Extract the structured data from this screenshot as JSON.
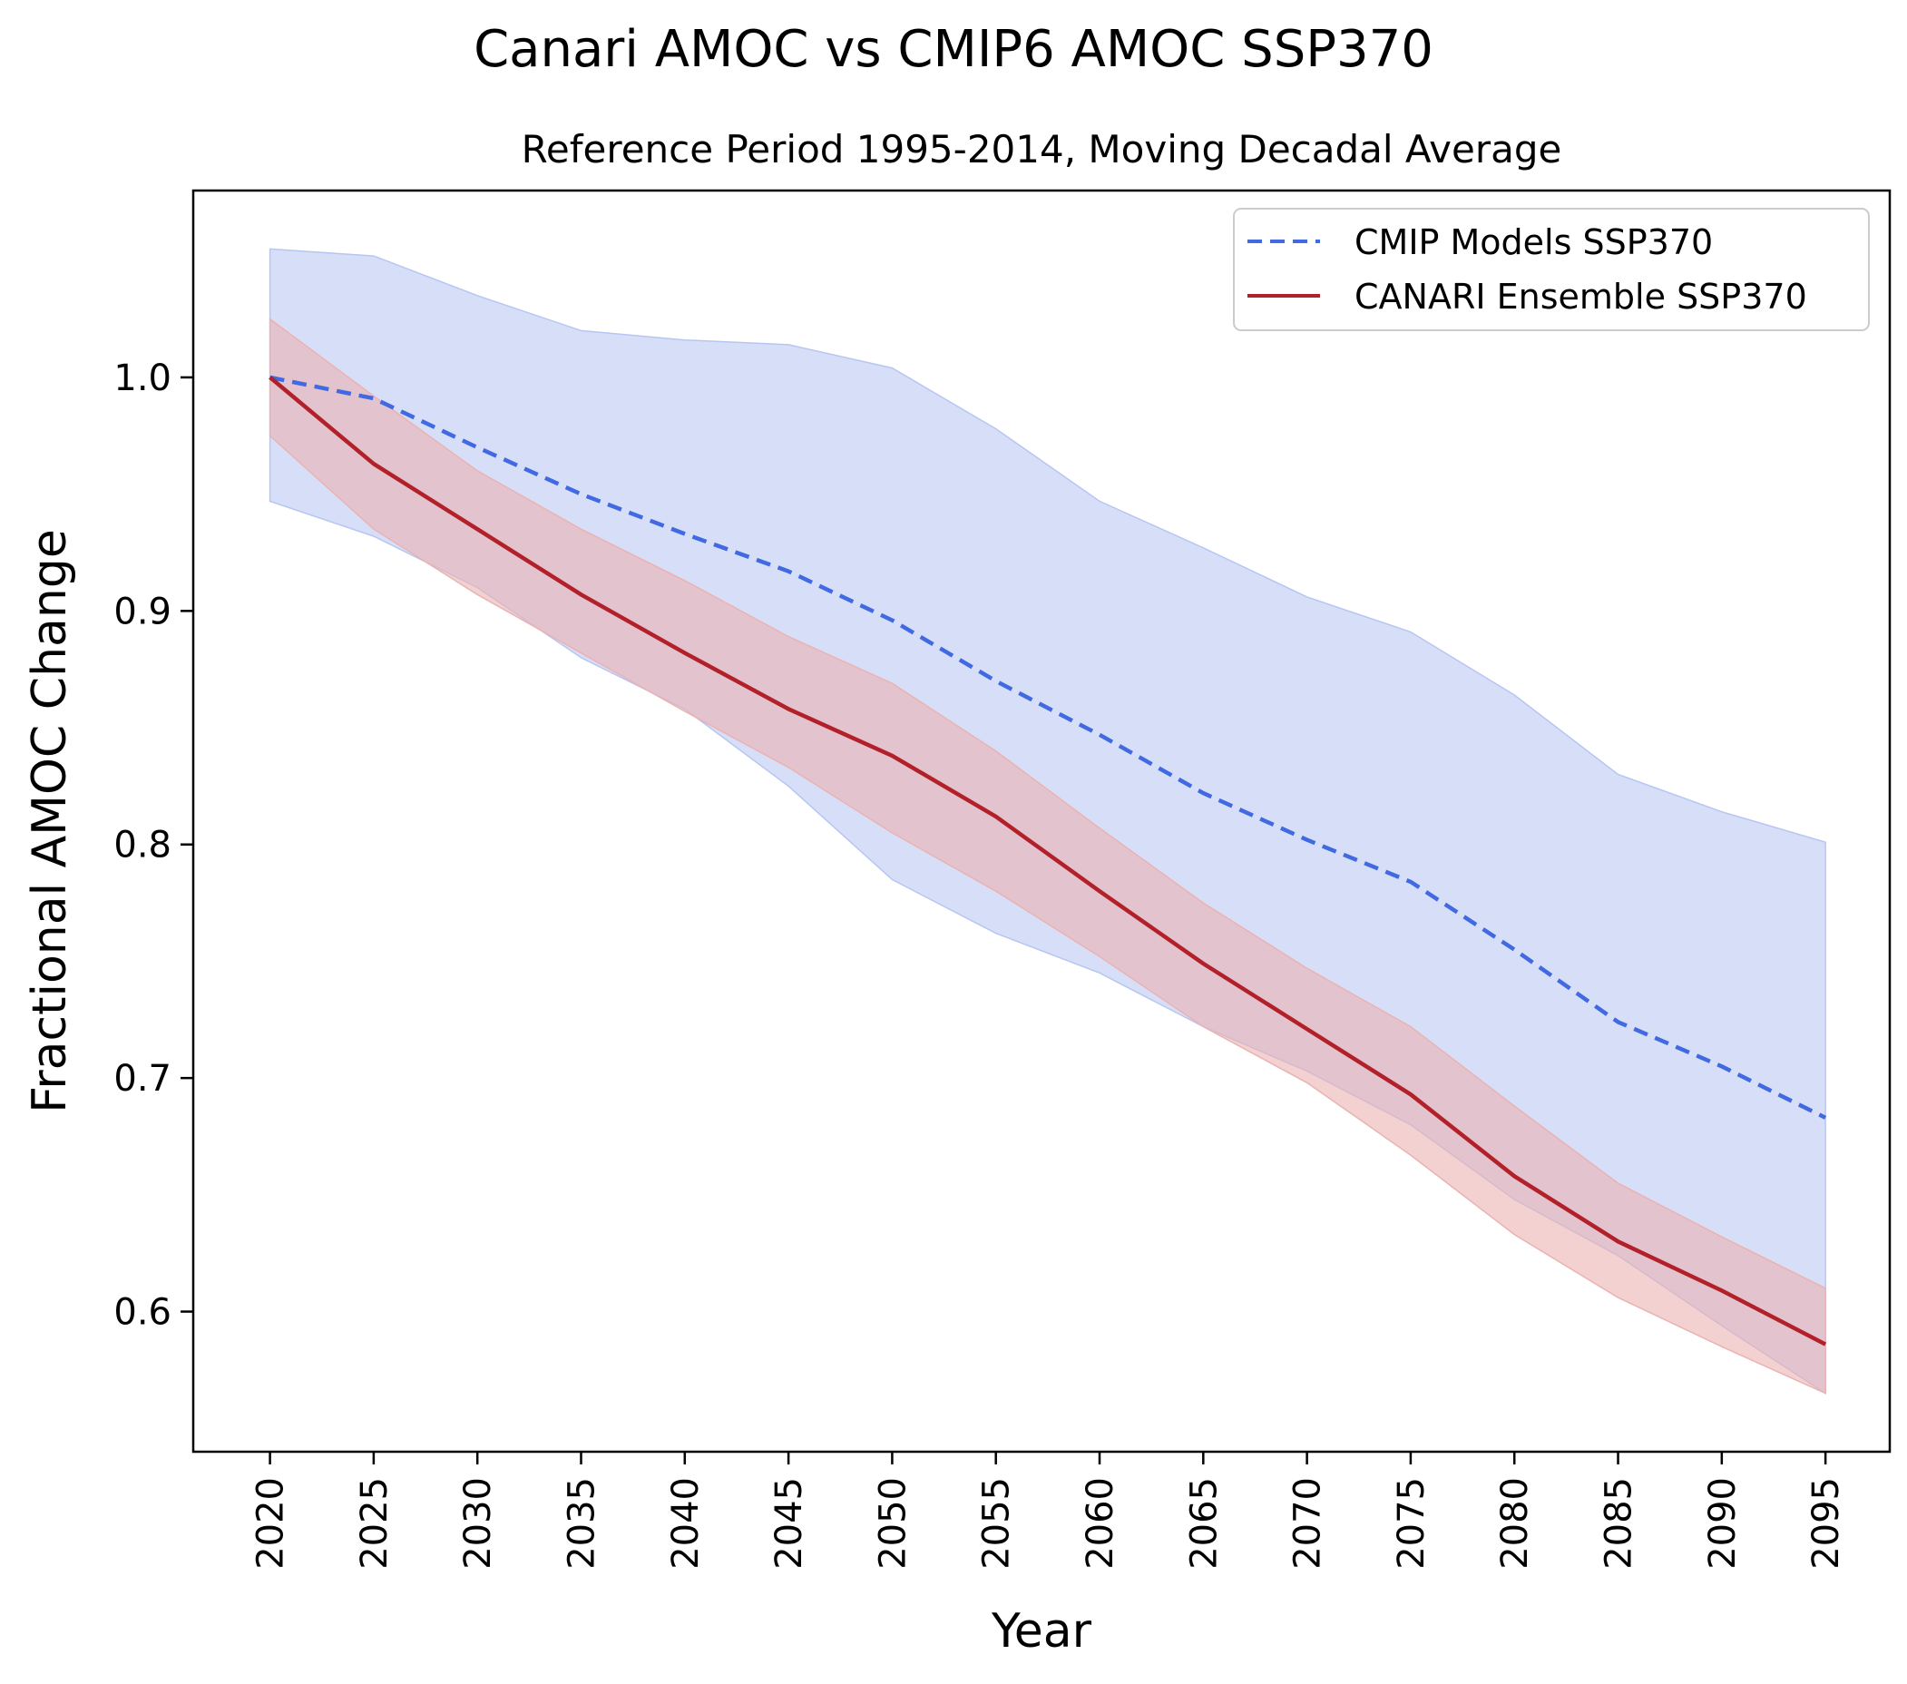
{
  "figure": {
    "title": "Canari AMOC vs CMIP6 AMOC SSP370",
    "subtitle": "Reference Period 1995-2014, Moving Decadal Average"
  },
  "chart_data": {
    "type": "line",
    "title": "Canari AMOC vs CMIP6 AMOC SSP370",
    "subtitle": "Reference Period 1995-2014, Moving Decadal Average",
    "xlabel": "Year",
    "ylabel": "Fractional AMOC Change",
    "xlim": [
      2016.3,
      2098.1
    ],
    "ylim": [
      0.54,
      1.08
    ],
    "xticks": [
      2020,
      2025,
      2030,
      2035,
      2040,
      2045,
      2050,
      2055,
      2060,
      2065,
      2070,
      2075,
      2080,
      2085,
      2090,
      2095
    ],
    "yticks": [
      0.6,
      0.7,
      0.8,
      0.9,
      1.0
    ],
    "ytick_labels": [
      "0.6",
      "0.7",
      "0.8",
      "0.9",
      "1.0"
    ],
    "grid": false,
    "legend_position": "top-right",
    "series": [
      {
        "name": "CMIP Models SSP370",
        "color": "#4169e1",
        "band_color": "#b7c5f2",
        "linestyle": "dashed",
        "x": [
          2020,
          2025,
          2030,
          2035,
          2040,
          2045,
          2050,
          2055,
          2060,
          2065,
          2070,
          2075,
          2080,
          2085,
          2090,
          2095
        ],
        "y": [
          1.0,
          0.991,
          0.97,
          0.95,
          0.933,
          0.917,
          0.896,
          0.87,
          0.847,
          0.822,
          0.802,
          0.784,
          0.755,
          0.724,
          0.705,
          0.683
        ],
        "upper": [
          1.055,
          1.052,
          1.035,
          1.02,
          1.016,
          1.014,
          1.004,
          0.978,
          0.947,
          0.927,
          0.906,
          0.891,
          0.864,
          0.83,
          0.814,
          0.801
        ],
        "lower": [
          0.947,
          0.932,
          0.91,
          0.88,
          0.858,
          0.825,
          0.785,
          0.762,
          0.745,
          0.722,
          0.703,
          0.68,
          0.648,
          0.624,
          0.594,
          0.565
        ]
      },
      {
        "name": "CANARI Ensemble SSP370",
        "color": "#b2202a",
        "band_color": "#ebb2b2",
        "linestyle": "solid",
        "x": [
          2020,
          2025,
          2030,
          2035,
          2040,
          2045,
          2050,
          2055,
          2060,
          2065,
          2070,
          2075,
          2080,
          2085,
          2090,
          2095
        ],
        "y": [
          1.0,
          0.963,
          0.935,
          0.907,
          0.882,
          0.858,
          0.838,
          0.812,
          0.78,
          0.749,
          0.721,
          0.693,
          0.658,
          0.63,
          0.609,
          0.586
        ],
        "upper": [
          1.025,
          0.992,
          0.96,
          0.935,
          0.913,
          0.889,
          0.869,
          0.84,
          0.807,
          0.775,
          0.747,
          0.722,
          0.688,
          0.655,
          0.632,
          0.61
        ],
        "lower": [
          0.975,
          0.935,
          0.907,
          0.882,
          0.857,
          0.833,
          0.805,
          0.78,
          0.752,
          0.722,
          0.698,
          0.667,
          0.633,
          0.606,
          0.585,
          0.565
        ]
      }
    ]
  }
}
